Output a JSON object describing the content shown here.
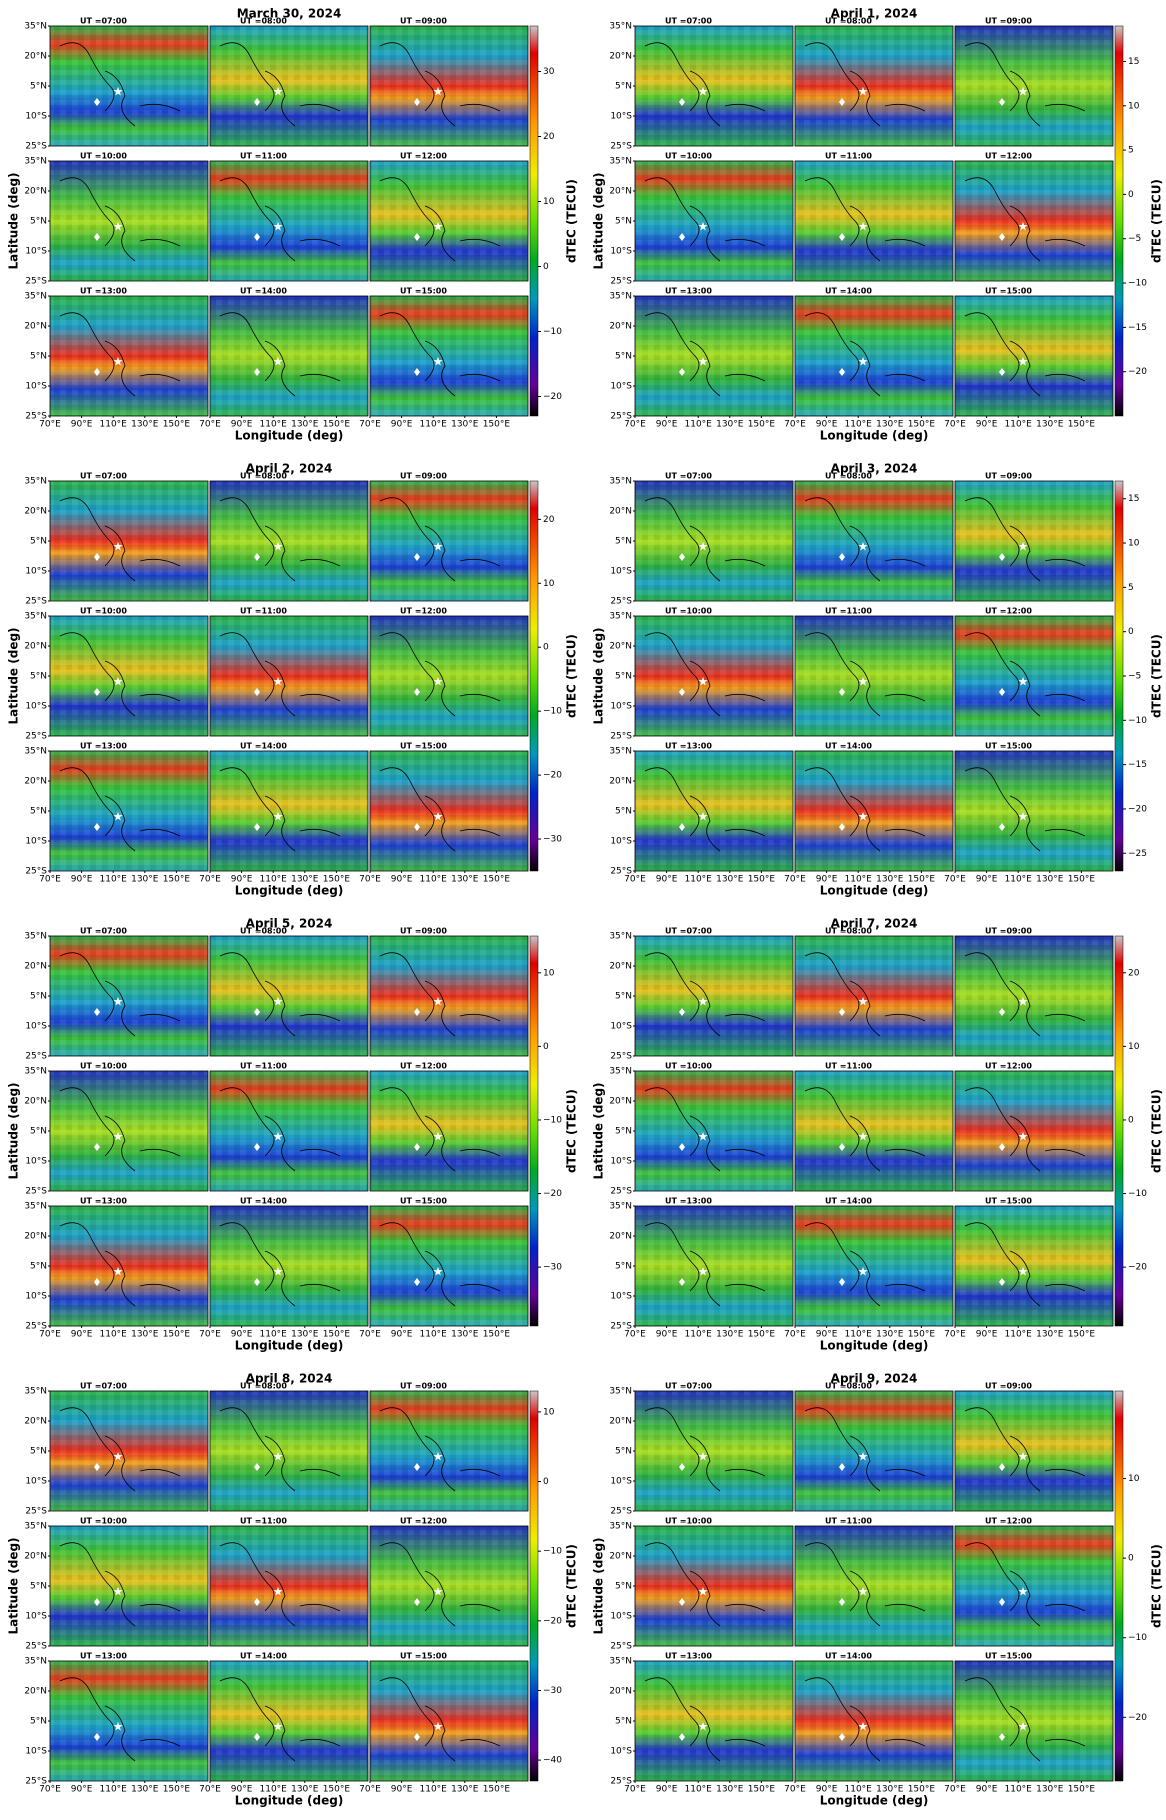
{
  "chart_data": [
    {
      "type": "heatmap-grid",
      "title": "March 30, 2024",
      "cbar_lim": [
        -23,
        37
      ],
      "cbar_ticks": [
        30,
        20,
        10,
        0,
        {
          "value": -10,
          "label": "−10"
        },
        {
          "value": -20,
          "label": "−20"
        }
      ]
    },
    {
      "type": "heatmap-grid",
      "title": "April 1, 2024",
      "cbar_lim": [
        -25,
        19
      ],
      "cbar_ticks": [
        15,
        10,
        5,
        0,
        {
          "value": -5,
          "label": "−5"
        },
        {
          "value": -10,
          "label": "−10"
        },
        {
          "value": -15,
          "label": "−15"
        },
        {
          "value": -20,
          "label": "−20"
        }
      ]
    },
    {
      "type": "heatmap-grid",
      "title": "April 2, 2024",
      "cbar_lim": [
        -35,
        26
      ],
      "cbar_ticks": [
        20,
        10,
        0,
        {
          "value": -10,
          "label": "−10"
        },
        {
          "value": -20,
          "label": "−20"
        },
        {
          "value": -30,
          "label": "−30"
        }
      ]
    },
    {
      "type": "heatmap-grid",
      "title": "April 3, 2024",
      "cbar_lim": [
        -27,
        17
      ],
      "cbar_ticks": [
        15,
        10,
        5,
        0,
        {
          "value": -5,
          "label": "−5"
        },
        {
          "value": -10,
          "label": "−10"
        },
        {
          "value": -15,
          "label": "−15"
        },
        {
          "value": -20,
          "label": "−20"
        },
        {
          "value": -25,
          "label": "−25"
        }
      ]
    },
    {
      "type": "heatmap-grid",
      "title": "April 5, 2024",
      "cbar_lim": [
        -38,
        15
      ],
      "cbar_ticks": [
        10,
        0,
        {
          "value": -10,
          "label": "−10"
        },
        {
          "value": -20,
          "label": "−20"
        },
        {
          "value": -30,
          "label": "−30"
        }
      ]
    },
    {
      "type": "heatmap-grid",
      "title": "April 7, 2024",
      "cbar_lim": [
        -28,
        25
      ],
      "cbar_ticks": [
        20,
        10,
        0,
        {
          "value": -10,
          "label": "−10"
        },
        {
          "value": -20,
          "label": "−20"
        }
      ]
    },
    {
      "type": "heatmap-grid",
      "title": "April 8, 2024",
      "cbar_lim": [
        -43,
        13
      ],
      "cbar_ticks": [
        10,
        0,
        {
          "value": -10,
          "label": "−10"
        },
        {
          "value": -20,
          "label": "−20"
        },
        {
          "value": -30,
          "label": "−30"
        },
        {
          "value": -40,
          "label": "−40"
        }
      ]
    },
    {
      "type": "heatmap-grid",
      "title": "April 9, 2024",
      "cbar_lim": [
        -28,
        21
      ],
      "cbar_ticks": [
        10,
        0,
        {
          "value": -10,
          "label": "−10"
        },
        {
          "value": -20,
          "label": "−20"
        }
      ]
    }
  ],
  "y_axis_label": "Latitude (deg)",
  "x_axis_label": "Longitude (deg)",
  "colorbar_label": "dTEC (TECU)",
  "ut_labels": [
    "UT =07:00",
    "UT =08:00",
    "UT =09:00",
    "UT =10:00",
    "UT =11:00",
    "UT =12:00",
    "UT =13:00",
    "UT =14:00",
    "UT =15:00"
  ],
  "lat_lim": [
    -25,
    35
  ],
  "lat_ticks": [
    {
      "value": 35,
      "label": "35°N"
    },
    {
      "value": 20,
      "label": "20°N"
    },
    {
      "value": 5,
      "label": "5°N"
    },
    {
      "value": -10,
      "label": "10°S"
    },
    {
      "value": -25,
      "label": "25°S"
    }
  ],
  "lon_lim": [
    70,
    170
  ],
  "lon_ticks": [
    {
      "value": 70,
      "label": "70°E"
    },
    {
      "value": 90,
      "label": "90°E"
    },
    {
      "value": 110,
      "label": "110°E"
    },
    {
      "value": 130,
      "label": "130°E"
    },
    {
      "value": 150,
      "label": "150°E"
    }
  ]
}
